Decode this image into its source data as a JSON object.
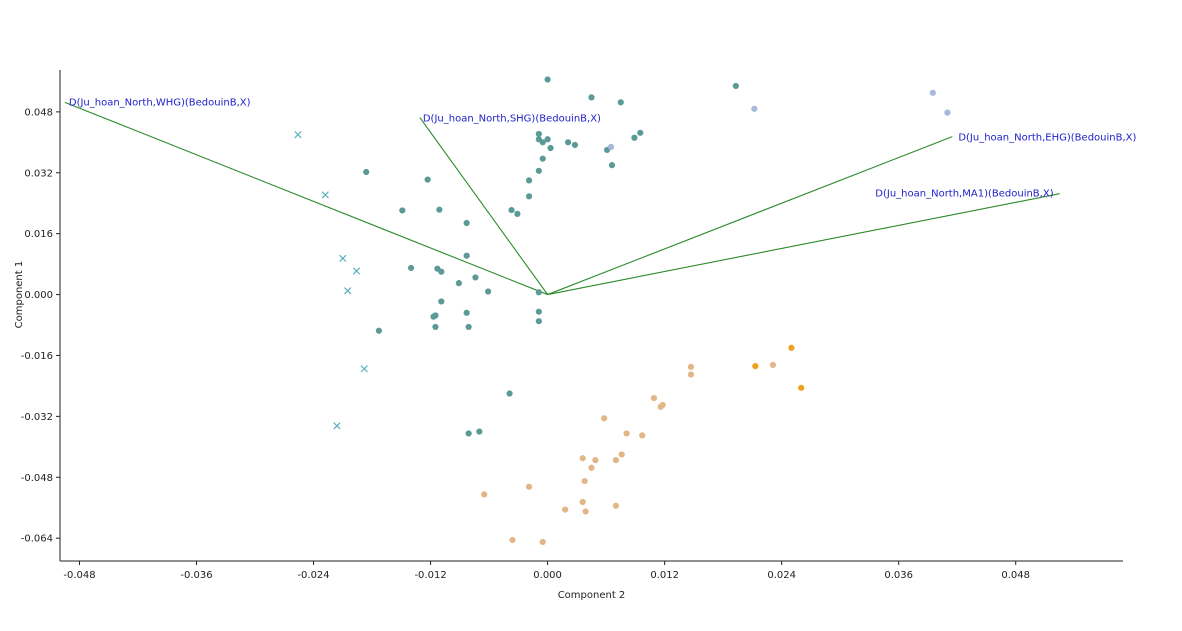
{
  "chart_data": {
    "type": "scatter",
    "xlabel": "Component 2",
    "ylabel": "Component 1",
    "xlim": [
      -0.05,
      0.059
    ],
    "ylim": [
      -0.07,
      0.059
    ],
    "x_ticks": [
      -0.048,
      -0.036,
      -0.024,
      -0.012,
      0.0,
      0.012,
      0.024,
      0.036,
      0.048
    ],
    "x_tick_labels": [
      "-0.048",
      "-0.036",
      "-0.024",
      "-0.012",
      "0.000",
      "0.012",
      "0.024",
      "0.036",
      "0.048"
    ],
    "y_ticks": [
      0.048,
      0.032,
      0.016,
      0.0,
      -0.016,
      -0.032,
      -0.048,
      -0.064
    ],
    "y_tick_labels": [
      "0.048",
      "0.032",
      "0.016",
      "0.000",
      "-0.016",
      "-0.032",
      "-0.048",
      "-0.064"
    ],
    "grid": false,
    "vectors": [
      {
        "label": "D(Ju_hoan_North,WHG)(BedouinB,X)",
        "x": -0.0495,
        "y": 0.0505
      },
      {
        "label": "D(Ju_hoan_North,SHG)(BedouinB,X)",
        "x": -0.0131,
        "y": 0.0465
      },
      {
        "label": "D(Ju_hoan_North,EHG)(BedouinB,X)",
        "x": 0.0415,
        "y": 0.0415
      },
      {
        "label": "D(Ju_hoan_North,MA1)(BedouinB,X)",
        "x": 0.0525,
        "y": 0.0265
      }
    ],
    "series": [
      {
        "marker": "circle",
        "color": "#5b9a96",
        "points": [
          [
            0.0,
            0.0565
          ],
          [
            0.0045,
            0.0518
          ],
          [
            0.0075,
            0.0505
          ],
          [
            0.0095,
            0.0425
          ],
          [
            0.0089,
            0.0412
          ],
          [
            -0.0009,
            0.0422
          ],
          [
            -0.0009,
            0.0408
          ],
          [
            -0.0005,
            0.04
          ],
          [
            0.0,
            0.0408
          ],
          [
            0.0003,
            0.0385
          ],
          [
            0.0021,
            0.04
          ],
          [
            0.0028,
            0.0393
          ],
          [
            0.0061,
            0.038
          ],
          [
            0.0066,
            0.034
          ],
          [
            -0.0005,
            0.0357
          ],
          [
            -0.0009,
            0.0325
          ],
          [
            -0.0019,
            0.03
          ],
          [
            -0.0019,
            0.0258
          ],
          [
            -0.0037,
            0.0222
          ],
          [
            -0.0031,
            0.0212
          ],
          [
            -0.0186,
            0.0322
          ],
          [
            -0.0123,
            0.0302
          ],
          [
            -0.0149,
            0.0221
          ],
          [
            -0.0111,
            0.0223
          ],
          [
            -0.0083,
            0.0188
          ],
          [
            -0.0083,
            0.0102
          ],
          [
            -0.014,
            0.007
          ],
          [
            -0.0113,
            0.0068
          ],
          [
            -0.0109,
            0.006
          ],
          [
            -0.0074,
            0.0045
          ],
          [
            -0.0091,
            0.003
          ],
          [
            -0.0061,
            0.0008
          ],
          [
            -0.0109,
            -0.0018
          ],
          [
            -0.0115,
            -0.0055
          ],
          [
            -0.0117,
            -0.0058
          ],
          [
            -0.0083,
            -0.0048
          ],
          [
            -0.0115,
            -0.0085
          ],
          [
            -0.0081,
            -0.0085
          ],
          [
            -0.0173,
            -0.0095
          ],
          [
            -0.0009,
            0.0006
          ],
          [
            -0.0009,
            -0.0045
          ],
          [
            -0.0009,
            -0.007
          ],
          [
            -0.0039,
            -0.026
          ],
          [
            -0.007,
            -0.036
          ],
          [
            -0.0081,
            -0.0365
          ],
          [
            0.0193,
            0.0548
          ]
        ]
      },
      {
        "marker": "circle",
        "color": "#e2b686",
        "points": [
          [
            0.0147,
            -0.019
          ],
          [
            0.0147,
            -0.021
          ],
          [
            0.0109,
            -0.0272
          ],
          [
            0.0118,
            -0.029
          ],
          [
            0.0116,
            -0.0295
          ],
          [
            0.0058,
            -0.0325
          ],
          [
            0.0081,
            -0.0365
          ],
          [
            0.0097,
            -0.037
          ],
          [
            0.0076,
            -0.042
          ],
          [
            0.007,
            -0.0435
          ],
          [
            0.0049,
            -0.0435
          ],
          [
            0.0036,
            -0.043
          ],
          [
            0.0045,
            -0.0455
          ],
          [
            0.0038,
            -0.049
          ],
          [
            -0.0019,
            -0.0505
          ],
          [
            -0.0065,
            -0.0525
          ],
          [
            0.0036,
            -0.0545
          ],
          [
            0.007,
            -0.0555
          ],
          [
            0.0018,
            -0.0565
          ],
          [
            0.0039,
            -0.057
          ],
          [
            -0.0036,
            -0.0645
          ],
          [
            -0.0005,
            -0.065
          ],
          [
            0.0231,
            -0.0185
          ]
        ]
      },
      {
        "marker": "circle",
        "color": "#f0a020",
        "points": [
          [
            0.025,
            -0.014
          ],
          [
            0.0213,
            -0.0188
          ],
          [
            0.026,
            -0.0245
          ]
        ]
      },
      {
        "marker": "circle",
        "color": "#a8b8d8",
        "points": [
          [
            0.0065,
            0.0388
          ],
          [
            0.0212,
            0.0488
          ],
          [
            0.0395,
            0.053
          ],
          [
            0.041,
            0.0478
          ]
        ]
      },
      {
        "marker": "cross",
        "color": "#5ab0c0",
        "points": [
          [
            -0.0256,
            0.042
          ],
          [
            -0.0228,
            0.0262
          ],
          [
            -0.021,
            0.0095
          ],
          [
            -0.0196,
            0.0062
          ],
          [
            -0.0205,
            0.001
          ],
          [
            -0.0188,
            -0.0195
          ],
          [
            -0.0216,
            -0.0345
          ]
        ]
      }
    ]
  }
}
